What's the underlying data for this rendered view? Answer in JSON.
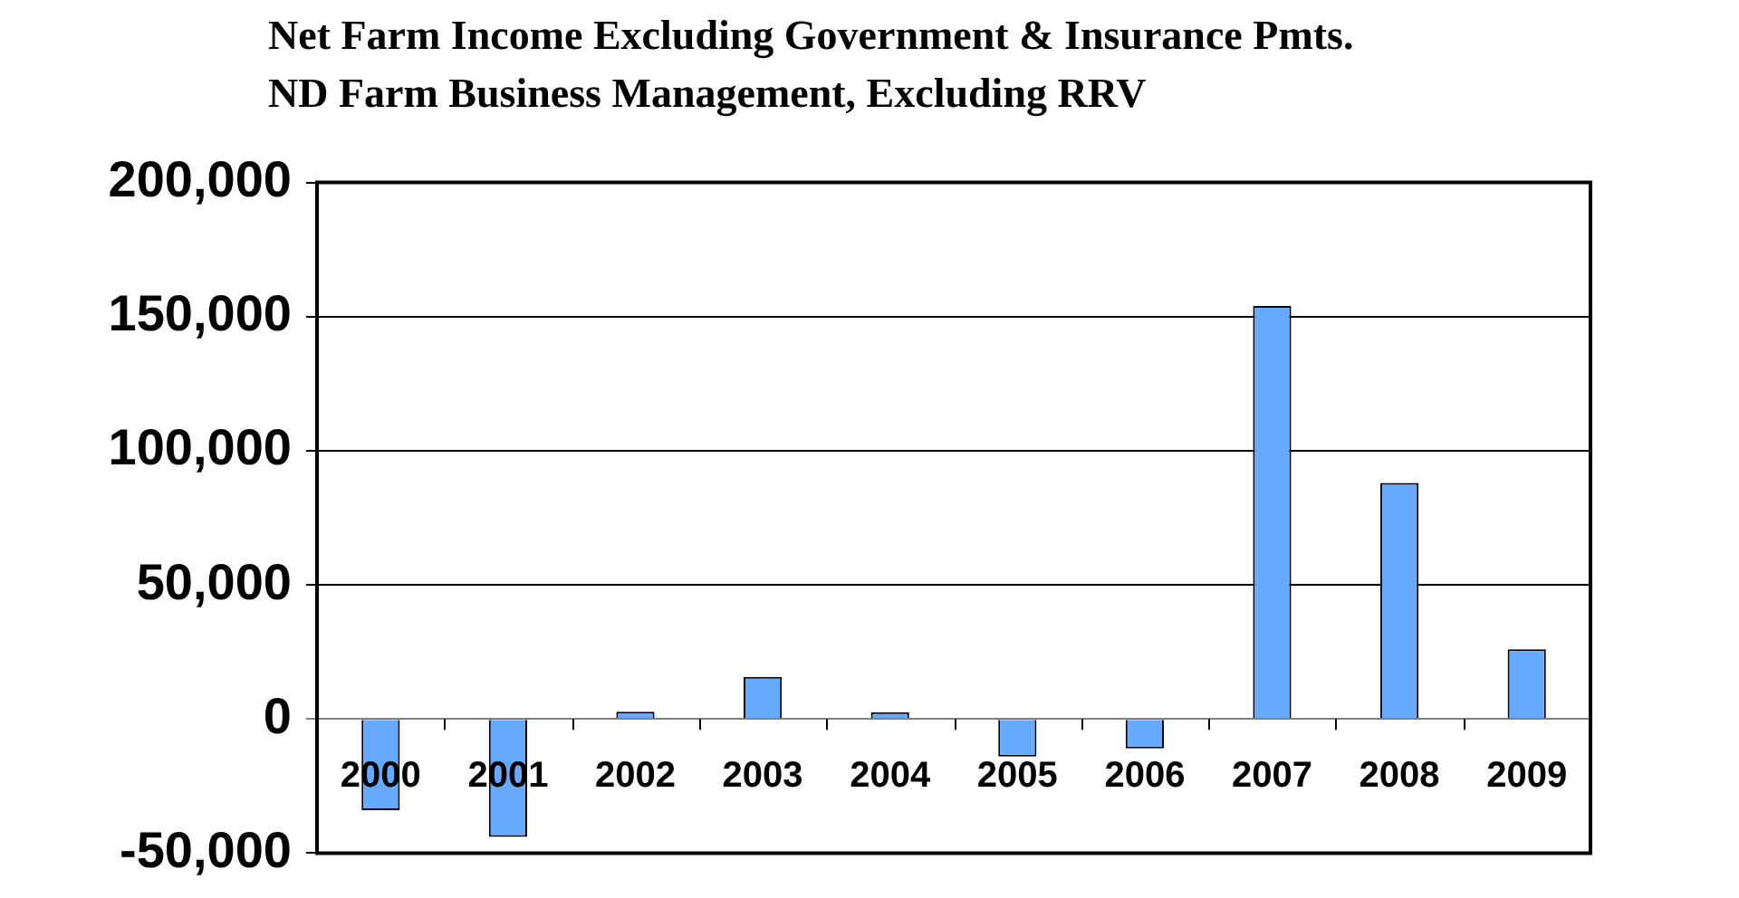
{
  "chart_data": {
    "type": "bar",
    "title": "Net Farm Income Excluding Government & Insurance Pmts.",
    "subtitle": "ND Farm Business Management, Excluding RRV",
    "categories": [
      "2000",
      "2001",
      "2002",
      "2003",
      "2004",
      "2005",
      "2006",
      "2007",
      "2008",
      "2009"
    ],
    "values": [
      -34000,
      -44000,
      2700,
      15700,
      2500,
      -14000,
      -11000,
      154000,
      88000,
      26000
    ],
    "color": "#66aaff",
    "ylim": [
      -50000,
      200000
    ],
    "yticks": [
      {
        "value": -50000,
        "label": "-50,000"
      },
      0,
      {
        "value": 50000,
        "label": "50,000"
      },
      {
        "value": 100000,
        "label": "100,000"
      },
      {
        "value": 150000,
        "label": "150,000"
      },
      {
        "value": 200000,
        "label": "200,000"
      }
    ],
    "grid": "y",
    "legend": false
  }
}
